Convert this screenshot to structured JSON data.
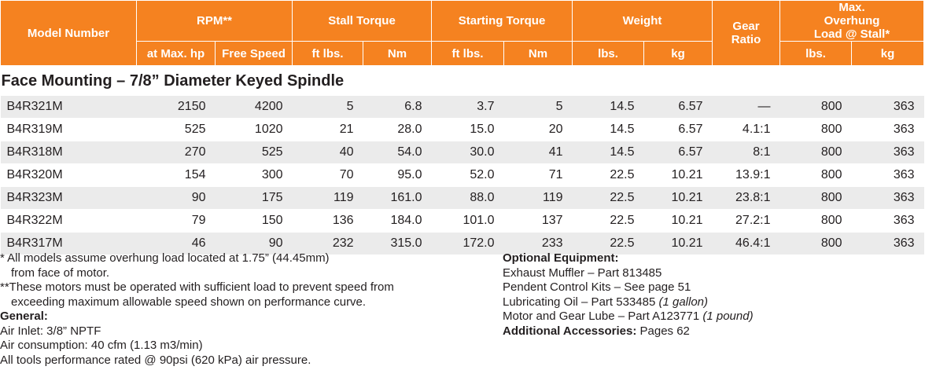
{
  "table": {
    "headers": {
      "model_number": "Model Number",
      "rpm": "RPM**",
      "stall_torque": "Stall Torque",
      "starting_torque": "Starting Torque",
      "weight": "Weight",
      "gear_ratio": "Gear Ratio",
      "max_overhung": "Max. Overhung Load @ Stall*",
      "sub": [
        "at Max. hp",
        "Free Speed",
        "ft lbs.",
        "Nm",
        "ft lbs.",
        "Nm",
        "lbs.",
        "kg",
        "lbs.",
        "kg"
      ]
    },
    "section_title": "Face Mounting – 7/8” Diameter Keyed Spindle",
    "rows": [
      [
        "B4R321M",
        "2150",
        "4200",
        "5",
        "6.8",
        "3.7",
        "5",
        "14.5",
        "6.57",
        "—",
        "800",
        "363"
      ],
      [
        "B4R319M",
        "525",
        "1020",
        "21",
        "28.0",
        "15.0",
        "20",
        "14.5",
        "6.57",
        "4.1:1",
        "800",
        "363"
      ],
      [
        "B4R318M",
        "270",
        "525",
        "40",
        "54.0",
        "30.0",
        "41",
        "14.5",
        "6.57",
        "8:1",
        "800",
        "363"
      ],
      [
        "B4R320M",
        "154",
        "300",
        "70",
        "95.0",
        "52.0",
        "71",
        "22.5",
        "10.21",
        "13.9:1",
        "800",
        "363"
      ],
      [
        "B4R323M",
        "90",
        "175",
        "119",
        "161.0",
        "88.0",
        "119",
        "22.5",
        "10.21",
        "23.8:1",
        "800",
        "363"
      ],
      [
        "B4R322M",
        "79",
        "150",
        "136",
        "184.0",
        "101.0",
        "137",
        "22.5",
        "10.21",
        "27.2:1",
        "800",
        "363"
      ],
      [
        "B4R317M",
        "46",
        "90",
        "232",
        "315.0",
        "172.0",
        "233",
        "22.5",
        "10.21",
        "46.4:1",
        "800",
        "363"
      ]
    ]
  },
  "notes": {
    "footnote1_a": "*  All models assume overhung load located at 1.75” (44.45mm)",
    "footnote1_b": "from face of motor.",
    "footnote2_a": "**These motors must be operated with sufficient load to prevent speed from",
    "footnote2_b": "exceeding maximum allowable speed shown on performance curve.",
    "general_heading": "General:",
    "general": [
      "Air Inlet: 3/8” NPTF",
      "Air consumption: 40 cfm (1.13 m3/min)",
      "All tools performance rated @ 90psi (620 kPa) air pressure."
    ],
    "optional_heading": "Optional Equipment:",
    "exhaust_muffler": "Exhaust Muffler – Part 813485",
    "pendent_kits": "Pendent Control Kits – See page 51",
    "lube_oil": "Lubricating Oil – Part 533485",
    "lube_oil_qty": "(1 gallon)",
    "gear_lube": "Motor and Gear Lube – Part A123771",
    "gear_lube_qty": "(1 pound)",
    "accessories_label": "Additional Accessories:",
    "accessories_value": "Pages 62"
  },
  "colors": {
    "header_bg": "#f58220",
    "stripe": "#ebebeb"
  }
}
